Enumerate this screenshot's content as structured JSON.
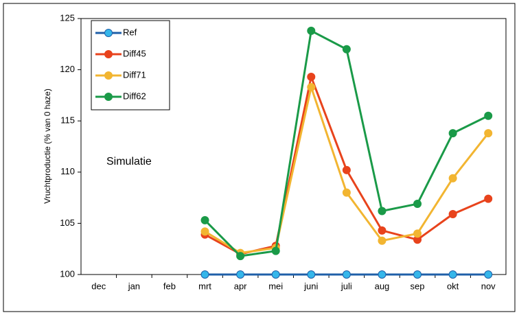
{
  "chart_data": {
    "type": "line",
    "y_label": "Vruchtproductie (% van 0 haze)",
    "annotation": "Simulatie",
    "categories": [
      "dec",
      "jan",
      "feb",
      "mrt",
      "apr",
      "mei",
      "juni",
      "juli",
      "aug",
      "sep",
      "okt",
      "nov"
    ],
    "series": [
      {
        "name": "Ref",
        "color": "#1f5fa8",
        "values": [
          null,
          null,
          null,
          100,
          100,
          100,
          100,
          100,
          100,
          100,
          100,
          100
        ]
      },
      {
        "name": "Diff45",
        "color": "#e8431c",
        "values": [
          null,
          null,
          null,
          103.9,
          102.0,
          102.8,
          119.3,
          110.2,
          104.3,
          103.4,
          105.9,
          107.4
        ]
      },
      {
        "name": "Diff71",
        "color": "#f2b531",
        "values": [
          null,
          null,
          null,
          104.2,
          102.1,
          102.6,
          118.3,
          108.0,
          103.3,
          104.0,
          109.4,
          113.8
        ]
      },
      {
        "name": "Diff62",
        "color": "#1a9a48",
        "values": [
          null,
          null,
          null,
          105.3,
          101.8,
          102.3,
          123.8,
          122.0,
          106.2,
          106.9,
          113.8,
          115.5
        ]
      }
    ],
    "ylim": [
      100,
      125
    ],
    "yticks": [
      100,
      105,
      110,
      115,
      120,
      125
    ],
    "legend": "upper left"
  }
}
